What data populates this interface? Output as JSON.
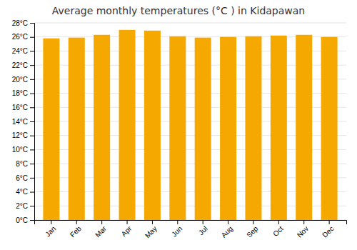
{
  "chart_data": {
    "type": "bar",
    "title": "Average monthly temperatures (°C ) in Kidapawan",
    "categories": [
      "Jan",
      "Feb",
      "Mar",
      "Apr",
      "May",
      "Jun",
      "Jul",
      "Aug",
      "Sep",
      "Oct",
      "Nov",
      "Dec"
    ],
    "values": [
      25.8,
      25.9,
      26.3,
      27.0,
      26.9,
      26.1,
      25.9,
      26.0,
      26.1,
      26.2,
      26.3,
      26.0
    ],
    "color": "#F5A800",
    "ylim": [
      0,
      28
    ],
    "yticks": [
      {
        "value": 0,
        "label": "0°C"
      },
      {
        "value": 2,
        "label": "2°C"
      },
      {
        "value": 4,
        "label": "4°C"
      },
      {
        "value": 6,
        "label": "6°C"
      },
      {
        "value": 8,
        "label": "8°C"
      },
      {
        "value": 10,
        "label": "10°C"
      },
      {
        "value": 12,
        "label": "12°C"
      },
      {
        "value": 14,
        "label": "14°C"
      },
      {
        "value": 16,
        "label": "16°C"
      },
      {
        "value": 18,
        "label": "18°C"
      },
      {
        "value": 20,
        "label": "20°C"
      },
      {
        "value": 22,
        "label": "22°C"
      },
      {
        "value": 24,
        "label": "24°C"
      },
      {
        "value": 26,
        "label": "26°C"
      },
      {
        "value": 28,
        "label": "28°C"
      }
    ],
    "grid": true
  }
}
